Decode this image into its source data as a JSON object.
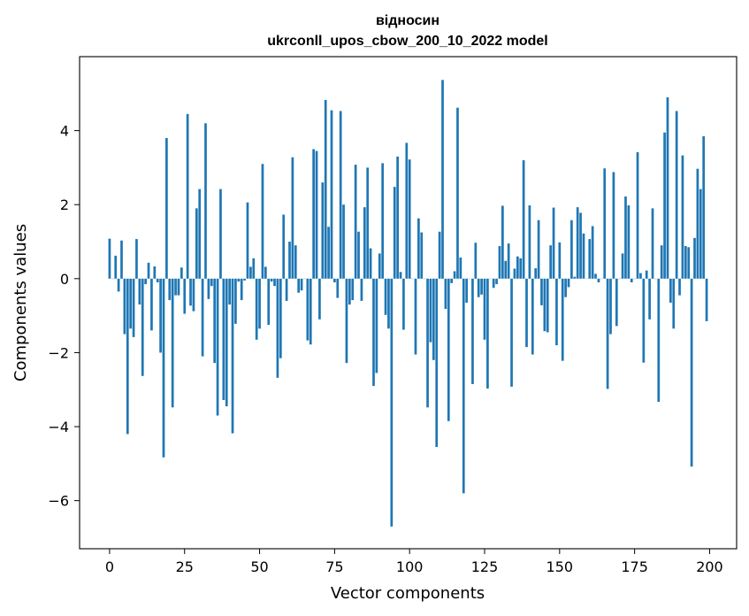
{
  "chart_data": {
    "type": "bar",
    "title_line1": "відносин",
    "title_line2": "ukrconll_upos_cbow_200_10_2022 model",
    "xlabel": "Vector components",
    "ylabel": "Components values",
    "xlim": [
      -10,
      209
    ],
    "ylim": [
      -7.3,
      6.0
    ],
    "xticks": [
      0,
      25,
      50,
      75,
      100,
      125,
      150,
      175,
      200
    ],
    "xtick_labels": [
      "0",
      "25",
      "50",
      "75",
      "100",
      "125",
      "150",
      "175",
      "200"
    ],
    "yticks": [
      -6,
      -4,
      -2,
      0,
      2,
      4
    ],
    "ytick_labels": [
      "−6",
      "−4",
      "−2",
      "0",
      "2",
      "4"
    ],
    "bar_color": "#1f77b4",
    "grid": false,
    "x": [
      0,
      1,
      2,
      3,
      4,
      5,
      6,
      7,
      8,
      9,
      10,
      11,
      12,
      13,
      14,
      15,
      16,
      17,
      18,
      19,
      20,
      21,
      22,
      23,
      24,
      25,
      26,
      27,
      28,
      29,
      30,
      31,
      32,
      33,
      34,
      35,
      36,
      37,
      38,
      39,
      40,
      41,
      42,
      43,
      44,
      45,
      46,
      47,
      48,
      49,
      50,
      51,
      52,
      53,
      54,
      55,
      56,
      57,
      58,
      59,
      60,
      61,
      62,
      63,
      64,
      65,
      66,
      67,
      68,
      69,
      70,
      71,
      72,
      73,
      74,
      75,
      76,
      77,
      78,
      79,
      80,
      81,
      82,
      83,
      84,
      85,
      86,
      87,
      88,
      89,
      90,
      91,
      92,
      93,
      94,
      95,
      96,
      97,
      98,
      99,
      100,
      101,
      102,
      103,
      104,
      105,
      106,
      107,
      108,
      109,
      110,
      111,
      112,
      113,
      114,
      115,
      116,
      117,
      118,
      119,
      120,
      121,
      122,
      123,
      124,
      125,
      126,
      127,
      128,
      129,
      130,
      131,
      132,
      133,
      134,
      135,
      136,
      137,
      138,
      139,
      140,
      141,
      142,
      143,
      144,
      145,
      146,
      147,
      148,
      149,
      150,
      151,
      152,
      153,
      154,
      155,
      156,
      157,
      158,
      159,
      160,
      161,
      162,
      163,
      164,
      165,
      166,
      167,
      168,
      169,
      170,
      171,
      172,
      173,
      174,
      175,
      176,
      177,
      178,
      179,
      180,
      181,
      182,
      183,
      184,
      185,
      186,
      187,
      188,
      189,
      190,
      191,
      192,
      193,
      194,
      195,
      196,
      197,
      198,
      199
    ],
    "values": [
      1.08,
      0.0,
      0.62,
      -0.35,
      1.03,
      -1.5,
      -4.2,
      -1.35,
      -1.58,
      1.07,
      -0.7,
      -2.63,
      -0.15,
      0.43,
      -1.4,
      0.33,
      -0.1,
      -2.0,
      -4.83,
      3.8,
      -0.58,
      -3.48,
      -0.45,
      -0.45,
      0.3,
      -0.95,
      4.45,
      -0.73,
      -0.88,
      1.9,
      2.42,
      -2.1,
      4.2,
      -0.55,
      -0.2,
      -2.28,
      -3.7,
      2.42,
      -3.28,
      -3.45,
      -0.7,
      -4.18,
      -1.22,
      -0.08,
      -0.58,
      -0.05,
      2.06,
      0.32,
      0.55,
      -1.65,
      -1.35,
      3.1,
      0.32,
      -1.25,
      -0.08,
      -0.2,
      -2.68,
      -2.15,
      1.73,
      -0.6,
      1.0,
      3.28,
      0.9,
      -0.38,
      -0.32,
      0.0,
      -1.67,
      -1.78,
      3.5,
      3.45,
      -1.1,
      2.6,
      4.83,
      1.4,
      4.55,
      -0.1,
      -0.52,
      4.53,
      2.0,
      -2.28,
      -0.7,
      -0.58,
      3.08,
      1.27,
      -0.6,
      1.93,
      3.0,
      0.82,
      -2.9,
      -2.55,
      0.68,
      3.12,
      -0.98,
      -1.35,
      -6.7,
      2.48,
      3.3,
      0.18,
      -1.38,
      3.67,
      3.22,
      0.0,
      -2.05,
      1.63,
      1.25,
      0.0,
      -3.48,
      -1.72,
      -2.2,
      -4.55,
      1.27,
      5.37,
      -0.82,
      -3.85,
      -0.12,
      0.2,
      4.62,
      0.57,
      -5.8,
      -0.65,
      0.0,
      -2.85,
      0.97,
      -0.5,
      -0.43,
      -1.65,
      -2.97,
      0.0,
      -0.25,
      -0.15,
      0.88,
      1.97,
      0.48,
      0.95,
      -2.92,
      0.27,
      0.6,
      0.55,
      3.2,
      -1.85,
      1.98,
      -2.05,
      0.28,
      1.58,
      -0.72,
      -1.42,
      -1.45,
      0.9,
      1.92,
      -1.8,
      0.98,
      -2.22,
      -0.5,
      -0.23,
      1.58,
      0.05,
      1.93,
      1.78,
      1.22,
      0.0,
      1.07,
      1.42,
      0.13,
      -0.1,
      0.0,
      2.98,
      -2.98,
      -1.5,
      2.88,
      -1.28,
      0.0,
      0.68,
      2.22,
      1.98,
      -0.1,
      0.0,
      3.42,
      0.15,
      -2.27,
      0.22,
      -1.1,
      1.9,
      0.0,
      -3.33,
      0.9,
      3.95,
      4.9,
      -0.65,
      -1.35,
      4.53,
      -0.45,
      3.33,
      0.88,
      0.85,
      -5.08,
      1.1,
      2.97,
      2.42,
      3.85,
      -1.15
    ]
  }
}
